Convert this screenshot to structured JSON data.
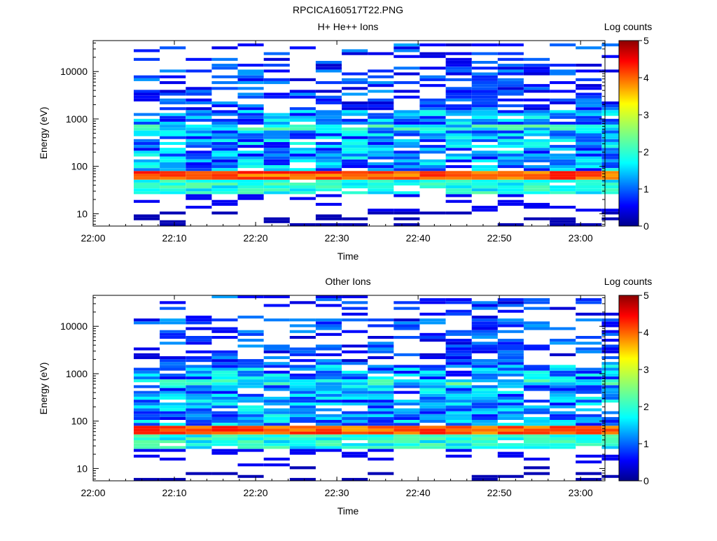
{
  "figure_title": "RPCICA160517T22.PNG",
  "chart_data": [
    {
      "type": "heatmap",
      "title": "H+ He++ Ions",
      "xlabel": "Time",
      "ylabel": "Energy (eV)",
      "colorbar_label": "Log counts",
      "x_ticks": [
        "22:00",
        "22:10",
        "22:20",
        "22:30",
        "22:40",
        "22:50",
        "23:00"
      ],
      "y_ticks": [
        "10",
        "100",
        "1000",
        "10000"
      ],
      "y_scale": "log",
      "xlim": [
        "22:00",
        "23:03"
      ],
      "ylim": [
        5.5,
        45000
      ],
      "colorbar_ticks": [
        "0",
        "1",
        "2",
        "3",
        "4",
        "5"
      ],
      "clim": [
        0,
        5
      ],
      "peak_band_energy_ev": 60,
      "peak_band_log_counts": 4.2
    },
    {
      "type": "heatmap",
      "title": "Other Ions",
      "xlabel": "Time",
      "ylabel": "Energy (eV)",
      "colorbar_label": "Log counts",
      "x_ticks": [
        "22:00",
        "22:10",
        "22:20",
        "22:30",
        "22:40",
        "22:50",
        "23:00"
      ],
      "y_ticks": [
        "10",
        "100",
        "1000",
        "10000"
      ],
      "y_scale": "log",
      "xlim": [
        "22:00",
        "23:03"
      ],
      "ylim": [
        5.5,
        45000
      ],
      "colorbar_ticks": [
        "0",
        "1",
        "2",
        "3",
        "4",
        "5"
      ],
      "clim": [
        0,
        5
      ],
      "peak_band_energy_ev": 60,
      "peak_band_log_counts": 4.2
    }
  ]
}
